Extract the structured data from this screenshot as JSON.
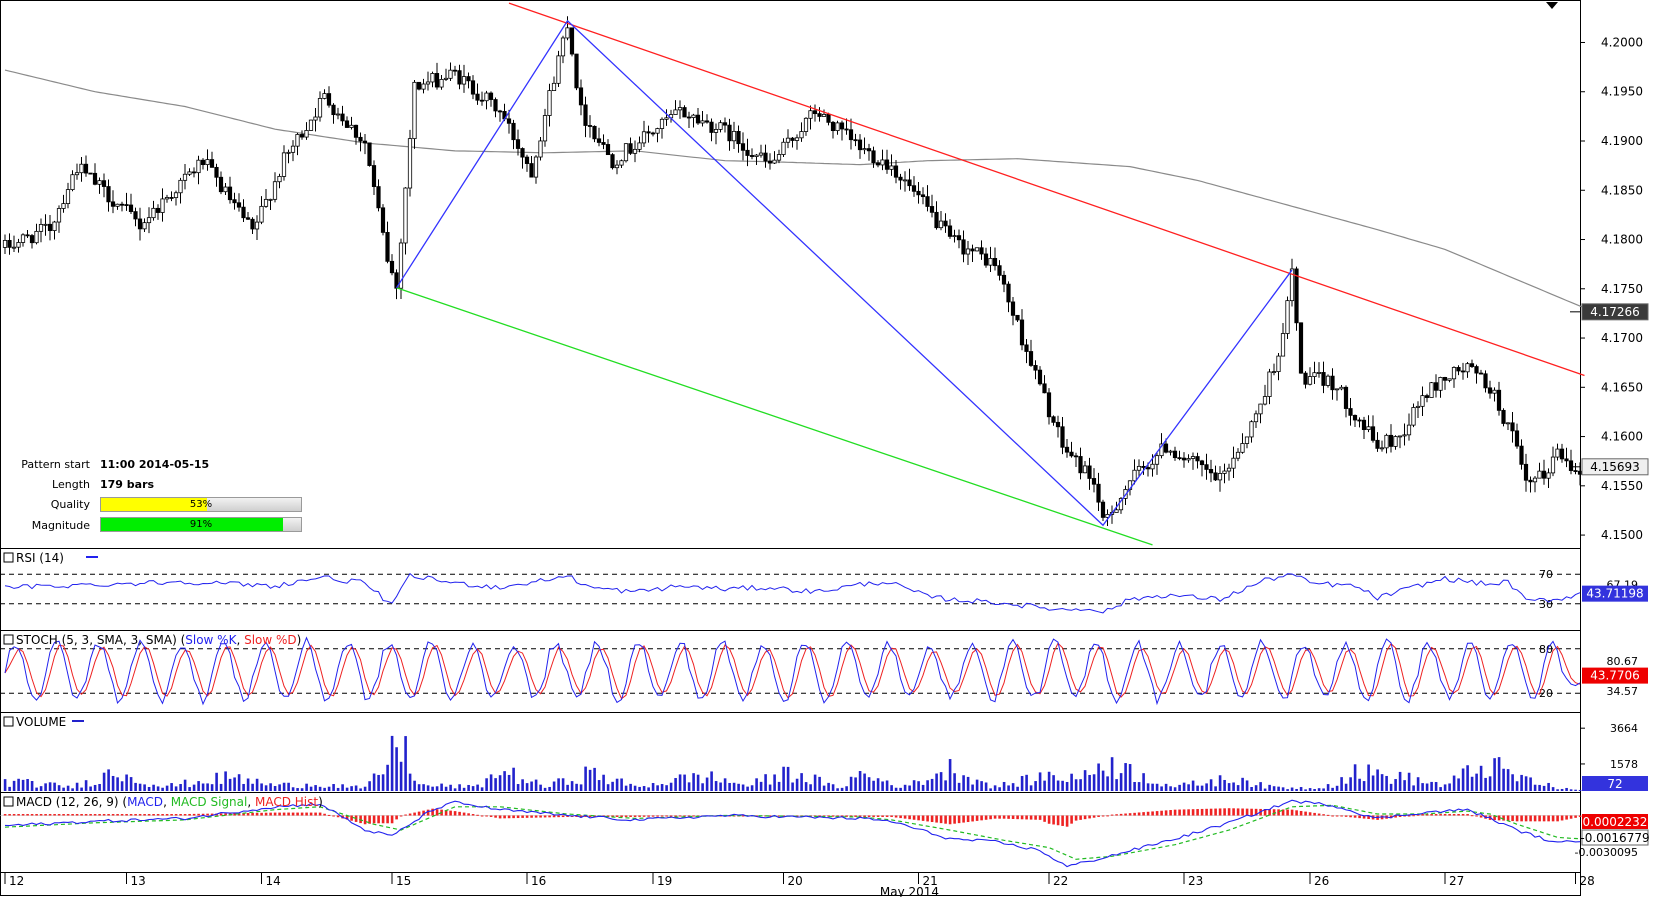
{
  "pattern_info": {
    "start_label": "Pattern start",
    "start_value": "11:00 2014-05-15",
    "length_label": "Length",
    "length_value": "179 bars",
    "quality_label": "Quality",
    "quality_text": "53%",
    "quality_value": 0.53,
    "magnitude_label": "Magnitude",
    "magnitude_text": "91%",
    "magnitude_value": 0.91,
    "quality_color": "#ffff00",
    "magnitude_color": "#00ee00"
  },
  "colors": {
    "bull": "#ffffff",
    "bear": "#000000",
    "ma": "#8a8a8a",
    "zigzag": "#3333ff",
    "resistance": "#ff2020",
    "support": "#22dd22",
    "rsi": "#2222ee",
    "stoch_k": "#2222ee",
    "stoch_d": "#ee2222",
    "volume": "#2222cc",
    "macd": "#2222ee",
    "macd_signal": "#22bb22",
    "macd_hist": "#ee2222",
    "price_tag_ma_bg": "#3a3a3a",
    "price_tag_last_bg": "#efefef",
    "value_tag_bg": "#3333dd",
    "value_tag_red_bg": "#ee0000"
  },
  "chart_data": [
    {
      "type": "candlestick",
      "ylim": [
        4.1495,
        4.2035
      ],
      "yticks": [
        "4.2000",
        "4.1950",
        "4.1900",
        "4.1850",
        "4.1800",
        "4.1750",
        "4.1700",
        "4.1650",
        "4.1600",
        "4.1550",
        "4.1500"
      ],
      "price_tags": {
        "ma": "4.17266",
        "last": "4.15693"
      },
      "ma_points": [
        [
          0,
          4.1972
        ],
        [
          20,
          4.195
        ],
        [
          40,
          4.1935
        ],
        [
          60,
          4.1912
        ],
        [
          80,
          4.1898
        ],
        [
          100,
          4.189
        ],
        [
          120,
          4.1888
        ],
        [
          140,
          4.189
        ],
        [
          160,
          4.188
        ],
        [
          170,
          4.1879
        ],
        [
          190,
          4.1876
        ],
        [
          205,
          4.188
        ],
        [
          225,
          4.1882
        ],
        [
          250,
          4.1874
        ],
        [
          265,
          4.186
        ],
        [
          285,
          4.1835
        ],
        [
          305,
          4.181
        ],
        [
          320,
          4.179
        ],
        [
          333,
          4.1765
        ],
        [
          345,
          4.1742
        ],
        [
          353,
          4.17266
        ]
      ],
      "zigzag": [
        [
          87,
          4.1751
        ],
        [
          125,
          4.2022
        ],
        [
          244,
          4.151
        ],
        [
          286,
          4.1769
        ]
      ],
      "resistance": [
        [
          112,
          4.204
        ],
        [
          351,
          4.1662
        ]
      ],
      "support": [
        [
          87,
          4.1751
        ],
        [
          255,
          4.149
        ]
      ],
      "anchors": [
        [
          0,
          4.1792
        ],
        [
          10,
          4.1812
        ],
        [
          16,
          4.1874
        ],
        [
          30,
          4.1815
        ],
        [
          44,
          4.188
        ],
        [
          55,
          4.1807
        ],
        [
          62,
          4.188
        ],
        [
          71,
          4.1945
        ],
        [
          80,
          4.1898
        ],
        [
          85,
          4.178
        ],
        [
          87,
          4.1751
        ],
        [
          91,
          4.1955
        ],
        [
          100,
          4.1968
        ],
        [
          110,
          4.193
        ],
        [
          117,
          4.187
        ],
        [
          125,
          4.2022
        ],
        [
          128,
          4.193
        ],
        [
          135,
          4.188
        ],
        [
          150,
          4.193
        ],
        [
          160,
          4.191
        ],
        [
          170,
          4.1875
        ],
        [
          180,
          4.193
        ],
        [
          190,
          4.1893
        ],
        [
          197,
          4.1875
        ],
        [
          205,
          4.183
        ],
        [
          210,
          4.18
        ],
        [
          220,
          4.1775
        ],
        [
          226,
          4.17
        ],
        [
          235,
          4.159
        ],
        [
          242,
          4.1555
        ],
        [
          244,
          4.151
        ],
        [
          250,
          4.1555
        ],
        [
          258,
          4.159
        ],
        [
          270,
          4.1555
        ],
        [
          278,
          4.162
        ],
        [
          284,
          4.17
        ],
        [
          286,
          4.1769
        ],
        [
          288,
          4.166
        ],
        [
          295,
          4.1655
        ],
        [
          305,
          4.159
        ],
        [
          310,
          4.16
        ],
        [
          315,
          4.164
        ],
        [
          320,
          4.166
        ],
        [
          325,
          4.167
        ],
        [
          330,
          4.165
        ],
        [
          335,
          4.16
        ],
        [
          338,
          4.155
        ],
        [
          342,
          4.156
        ],
        [
          345,
          4.1585
        ],
        [
          348,
          4.1572
        ],
        [
          350,
          4.15693
        ]
      ]
    },
    {
      "type": "line",
      "name": "RSI (14)",
      "levels": [
        70,
        30
      ],
      "ylim": [
        0,
        100
      ],
      "yticks": [
        "70",
        "67.19",
        "30"
      ],
      "value_tag": "43.71198",
      "anchors": [
        [
          0,
          52
        ],
        [
          20,
          56
        ],
        [
          40,
          60
        ],
        [
          60,
          54
        ],
        [
          70,
          66
        ],
        [
          80,
          58
        ],
        [
          86,
          28
        ],
        [
          90,
          68
        ],
        [
          100,
          58
        ],
        [
          110,
          52
        ],
        [
          120,
          62
        ],
        [
          125,
          68
        ],
        [
          130,
          52
        ],
        [
          140,
          46
        ],
        [
          150,
          54
        ],
        [
          160,
          50
        ],
        [
          170,
          52
        ],
        [
          180,
          46
        ],
        [
          190,
          56
        ],
        [
          196,
          60
        ],
        [
          205,
          40
        ],
        [
          210,
          36
        ],
        [
          220,
          32
        ],
        [
          226,
          28
        ],
        [
          235,
          22
        ],
        [
          242,
          24
        ],
        [
          244,
          18
        ],
        [
          250,
          36
        ],
        [
          258,
          42
        ],
        [
          270,
          36
        ],
        [
          280,
          62
        ],
        [
          286,
          70
        ],
        [
          290,
          58
        ],
        [
          300,
          54
        ],
        [
          305,
          38
        ],
        [
          315,
          56
        ],
        [
          320,
          64
        ],
        [
          330,
          56
        ],
        [
          334,
          60
        ],
        [
          338,
          34
        ],
        [
          345,
          36
        ],
        [
          350,
          43.71
        ]
      ]
    },
    {
      "type": "line",
      "name": "STOCH (5, 3, SMA, 3, SMA)",
      "series_names": [
        "Slow %K",
        "Slow %D"
      ],
      "levels": [
        80,
        20
      ],
      "ylim": [
        0,
        100
      ],
      "yticks": [
        "80",
        "80.67",
        "20",
        "34.57"
      ],
      "value_tag": "43.7706",
      "last_value": 43.77,
      "cycles": 38
    },
    {
      "type": "bar",
      "name": "VOLUME",
      "ylim": [
        0,
        4200
      ],
      "yticks": [
        "3664",
        "1578"
      ],
      "value_tag": "72",
      "anchors": [
        [
          0,
          700
        ],
        [
          15,
          300
        ],
        [
          25,
          1400
        ],
        [
          35,
          300
        ],
        [
          50,
          1000
        ],
        [
          60,
          400
        ],
        [
          70,
          500
        ],
        [
          80,
          200
        ],
        [
          84,
          1600
        ],
        [
          88,
          3664
        ],
        [
          92,
          400
        ],
        [
          105,
          300
        ],
        [
          110,
          1500
        ],
        [
          120,
          300
        ],
        [
          130,
          1300
        ],
        [
          140,
          300
        ],
        [
          155,
          1100
        ],
        [
          165,
          400
        ],
        [
          175,
          1400
        ],
        [
          185,
          200
        ],
        [
          190,
          1200
        ],
        [
          200,
          300
        ],
        [
          210,
          1600
        ],
        [
          220,
          300
        ],
        [
          232,
          1100
        ],
        [
          240,
          1000
        ],
        [
          244,
          2200
        ],
        [
          250,
          1400
        ],
        [
          260,
          300
        ],
        [
          268,
          700
        ],
        [
          275,
          900
        ],
        [
          280,
          300
        ],
        [
          290,
          200
        ],
        [
          295,
          500
        ],
        [
          300,
          1400
        ],
        [
          310,
          1000
        ],
        [
          320,
          400
        ],
        [
          325,
          1300
        ],
        [
          330,
          1900
        ],
        [
          336,
          1000
        ],
        [
          345,
          200
        ],
        [
          350,
          72
        ]
      ]
    },
    {
      "type": "line",
      "name": "MACD (12, 26, 9)",
      "series_names": [
        "MACD",
        "MACD Signal",
        "MACD Hist"
      ],
      "ylim": [
        -0.0036,
        0.0012
      ],
      "yticks": [
        "-0.0030095"
      ],
      "value_tags": [
        "0.0002232",
        "-0.0016779"
      ],
      "macd_anchors": [
        [
          0,
          -0.0007
        ],
        [
          20,
          -0.0004
        ],
        [
          40,
          -0.0002
        ],
        [
          60,
          0.0006
        ],
        [
          70,
          0.0008
        ],
        [
          80,
          -0.001
        ],
        [
          86,
          -0.0014
        ],
        [
          95,
          0.0004
        ],
        [
          100,
          0.0009
        ],
        [
          110,
          0.0004
        ],
        [
          125,
          0.0
        ],
        [
          140,
          -0.0003
        ],
        [
          160,
          0.0
        ],
        [
          190,
          -0.0002
        ],
        [
          197,
          -0.0004
        ],
        [
          210,
          -0.0016
        ],
        [
          220,
          -0.0018
        ],
        [
          230,
          -0.0024
        ],
        [
          236,
          -0.0035
        ],
        [
          244,
          -0.0029
        ],
        [
          260,
          -0.0016
        ],
        [
          272,
          -0.0005
        ],
        [
          286,
          0.001
        ],
        [
          295,
          0.0007
        ],
        [
          305,
          -0.0002
        ],
        [
          315,
          0.0002
        ],
        [
          325,
          0.0004
        ],
        [
          330,
          -0.0002
        ],
        [
          336,
          -0.001
        ],
        [
          345,
          -0.0019
        ],
        [
          350,
          -0.0017
        ]
      ],
      "signal_anchors": [
        [
          0,
          -0.0008
        ],
        [
          20,
          -0.0005
        ],
        [
          40,
          -0.0003
        ],
        [
          60,
          0.0004
        ],
        [
          70,
          0.0006
        ],
        [
          82,
          -0.0006
        ],
        [
          88,
          -0.001
        ],
        [
          100,
          0.0006
        ],
        [
          110,
          0.0006
        ],
        [
          125,
          0.0001
        ],
        [
          140,
          -0.0002
        ],
        [
          160,
          0.0
        ],
        [
          190,
          -0.0001
        ],
        [
          197,
          -0.0003
        ],
        [
          210,
          -0.001
        ],
        [
          222,
          -0.0017
        ],
        [
          232,
          -0.0022
        ],
        [
          238,
          -0.003
        ],
        [
          246,
          -0.0028
        ],
        [
          260,
          -0.002
        ],
        [
          272,
          -0.001
        ],
        [
          286,
          0.0006
        ],
        [
          295,
          0.0007
        ],
        [
          305,
          0.0001
        ],
        [
          315,
          0.0001
        ],
        [
          325,
          0.0003
        ],
        [
          330,
          0.0001
        ],
        [
          336,
          -0.0006
        ],
        [
          345,
          -0.0015
        ],
        [
          350,
          -0.0016
        ]
      ]
    }
  ],
  "x_axis": {
    "labels": [
      [
        "12",
        0
      ],
      [
        "13",
        27
      ],
      [
        "14",
        57
      ],
      [
        "15",
        86
      ],
      [
        "16",
        116
      ],
      [
        "19",
        144
      ],
      [
        "20",
        173
      ],
      [
        "21",
        203
      ],
      [
        "22",
        232
      ],
      [
        "23",
        262
      ],
      [
        "26",
        290
      ],
      [
        "27",
        320
      ],
      [
        "28",
        349
      ]
    ],
    "month_label": "May 2014",
    "month_pos": 201
  }
}
